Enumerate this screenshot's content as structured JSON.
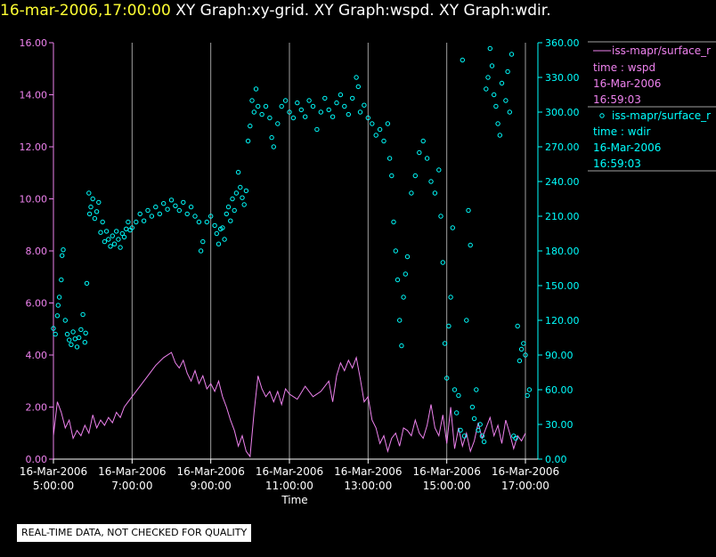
{
  "header": {
    "timestamp": "16-mar-2006,17:00:00",
    "graphs": "XY Graph:xy-grid.  XY Graph:wspd.  XY Graph:wdir."
  },
  "disclaimer": "REAL-TIME DATA, NOT CHECKED FOR QUALITY",
  "colors": {
    "wspd": "#ee82ee",
    "wdir": "#00ffff",
    "left_axis": "#ee82ee",
    "right_axis": "#00ffff",
    "grid": "#a0a0a0",
    "axis": "#ffffff"
  },
  "chart_data": {
    "type": "line",
    "title": "XY Graph:wspd / wdir",
    "xlabel": "Time",
    "ylabel_left": "",
    "ylabel_right": "",
    "xlim_hours": [
      5.0,
      17.2
    ],
    "x_ticks": [
      {
        "hour": 5,
        "date": "16-Mar-2006",
        "time": "5:00:00"
      },
      {
        "hour": 7,
        "date": "16-Mar-2006",
        "time": "7:00:00"
      },
      {
        "hour": 9,
        "date": "16-Mar-2006",
        "time": "9:00:00"
      },
      {
        "hour": 11,
        "date": "16-Mar-2006",
        "time": "11:00:00"
      },
      {
        "hour": 13,
        "date": "16-Mar-2006",
        "time": "13:00:00"
      },
      {
        "hour": 15,
        "date": "16-Mar-2006",
        "time": "15:00:00"
      },
      {
        "hour": 17,
        "date": "16-Mar-2006",
        "time": "17:00:00"
      }
    ],
    "y_left": {
      "range": [
        0,
        16
      ],
      "ticks": [
        "0.00",
        "2.00",
        "4.00",
        "6.00",
        "8.00",
        "10.00",
        "12.00",
        "14.00",
        "16.00"
      ]
    },
    "y_right": {
      "range": [
        0,
        360
      ],
      "ticks": [
        "0.00",
        "30.00",
        "60.00",
        "90.00",
        "120.00",
        "150.00",
        "180.00",
        "210.00",
        "240.00",
        "270.00",
        "300.00",
        "330.00",
        "360.00"
      ]
    },
    "grid_vertical_hours": [
      7,
      9,
      11,
      13,
      15,
      17
    ],
    "series": [
      {
        "name": "iss-mapr/surface_r",
        "legend_lines": [
          "time : wspd",
          "16-Mar-2006",
          "16:59:03"
        ],
        "axis": "left",
        "style": "line",
        "points": [
          [
            5.0,
            0.9
          ],
          [
            5.1,
            2.2
          ],
          [
            5.2,
            1.8
          ],
          [
            5.3,
            1.2
          ],
          [
            5.4,
            1.5
          ],
          [
            5.5,
            0.8
          ],
          [
            5.6,
            1.1
          ],
          [
            5.7,
            0.9
          ],
          [
            5.8,
            1.3
          ],
          [
            5.9,
            1.0
          ],
          [
            6.0,
            1.7
          ],
          [
            6.1,
            1.2
          ],
          [
            6.2,
            1.5
          ],
          [
            6.3,
            1.3
          ],
          [
            6.4,
            1.6
          ],
          [
            6.5,
            1.4
          ],
          [
            6.6,
            1.8
          ],
          [
            6.7,
            1.6
          ],
          [
            6.8,
            2.0
          ],
          [
            6.9,
            2.2
          ],
          [
            7.0,
            2.4
          ],
          [
            7.2,
            2.8
          ],
          [
            7.4,
            3.2
          ],
          [
            7.6,
            3.6
          ],
          [
            7.8,
            3.9
          ],
          [
            8.0,
            4.1
          ],
          [
            8.1,
            3.7
          ],
          [
            8.2,
            3.5
          ],
          [
            8.3,
            3.8
          ],
          [
            8.4,
            3.3
          ],
          [
            8.5,
            3.0
          ],
          [
            8.6,
            3.4
          ],
          [
            8.7,
            2.9
          ],
          [
            8.8,
            3.2
          ],
          [
            8.9,
            2.7
          ],
          [
            9.0,
            2.9
          ],
          [
            9.1,
            2.6
          ],
          [
            9.2,
            3.0
          ],
          [
            9.3,
            2.4
          ],
          [
            9.4,
            2.0
          ],
          [
            9.5,
            1.5
          ],
          [
            9.6,
            1.1
          ],
          [
            9.7,
            0.5
          ],
          [
            9.8,
            0.9
          ],
          [
            9.9,
            0.3
          ],
          [
            10.0,
            0.1
          ],
          [
            10.1,
            1.8
          ],
          [
            10.2,
            3.2
          ],
          [
            10.3,
            2.7
          ],
          [
            10.4,
            2.4
          ],
          [
            10.5,
            2.6
          ],
          [
            10.6,
            2.2
          ],
          [
            10.7,
            2.6
          ],
          [
            10.8,
            2.1
          ],
          [
            10.9,
            2.7
          ],
          [
            11.0,
            2.5
          ],
          [
            11.2,
            2.3
          ],
          [
            11.4,
            2.8
          ],
          [
            11.6,
            2.4
          ],
          [
            11.8,
            2.6
          ],
          [
            12.0,
            3.0
          ],
          [
            12.1,
            2.2
          ],
          [
            12.2,
            3.2
          ],
          [
            12.3,
            3.7
          ],
          [
            12.4,
            3.4
          ],
          [
            12.5,
            3.8
          ],
          [
            12.6,
            3.5
          ],
          [
            12.7,
            3.9
          ],
          [
            12.8,
            3.1
          ],
          [
            12.9,
            2.2
          ],
          [
            13.0,
            2.4
          ],
          [
            13.1,
            1.5
          ],
          [
            13.2,
            1.2
          ],
          [
            13.3,
            0.6
          ],
          [
            13.4,
            0.9
          ],
          [
            13.5,
            0.3
          ],
          [
            13.6,
            0.8
          ],
          [
            13.7,
            1.0
          ],
          [
            13.8,
            0.5
          ],
          [
            13.9,
            1.2
          ],
          [
            14.0,
            1.1
          ],
          [
            14.1,
            0.9
          ],
          [
            14.2,
            1.5
          ],
          [
            14.3,
            1.0
          ],
          [
            14.4,
            0.8
          ],
          [
            14.5,
            1.3
          ],
          [
            14.6,
            2.1
          ],
          [
            14.7,
            1.2
          ],
          [
            14.8,
            0.9
          ],
          [
            14.9,
            1.7
          ],
          [
            15.0,
            0.6
          ],
          [
            15.1,
            2.0
          ],
          [
            15.2,
            0.4
          ],
          [
            15.3,
            1.2
          ],
          [
            15.4,
            0.5
          ],
          [
            15.5,
            1.0
          ],
          [
            15.6,
            0.3
          ],
          [
            15.7,
            0.7
          ],
          [
            15.8,
            1.4
          ],
          [
            15.9,
            0.8
          ],
          [
            16.0,
            1.2
          ],
          [
            16.1,
            1.6
          ],
          [
            16.2,
            0.9
          ],
          [
            16.3,
            1.3
          ],
          [
            16.4,
            0.6
          ],
          [
            16.5,
            1.5
          ],
          [
            16.6,
            1.0
          ],
          [
            16.7,
            0.4
          ],
          [
            16.8,
            0.9
          ],
          [
            16.9,
            0.7
          ],
          [
            17.0,
            1.0
          ]
        ]
      },
      {
        "name": "iss-mapr/surface_r",
        "legend_lines": [
          "time : wdir",
          "16-Mar-2006",
          "16:59:03"
        ],
        "axis": "right",
        "style": "scatter",
        "points": [
          [
            5.0,
            113
          ],
          [
            5.05,
            108
          ],
          [
            5.1,
            124
          ],
          [
            5.12,
            133
          ],
          [
            5.15,
            140
          ],
          [
            5.2,
            155
          ],
          [
            5.22,
            176
          ],
          [
            5.25,
            181
          ],
          [
            5.3,
            120
          ],
          [
            5.35,
            108
          ],
          [
            5.4,
            103
          ],
          [
            5.45,
            99
          ],
          [
            5.5,
            110
          ],
          [
            5.55,
            104
          ],
          [
            5.6,
            97
          ],
          [
            5.65,
            105
          ],
          [
            5.7,
            112
          ],
          [
            5.75,
            125
          ],
          [
            5.8,
            101
          ],
          [
            5.82,
            109
          ],
          [
            5.85,
            152
          ],
          [
            5.9,
            230
          ],
          [
            5.92,
            212
          ],
          [
            5.95,
            218
          ],
          [
            6.0,
            225
          ],
          [
            6.05,
            208
          ],
          [
            6.1,
            214
          ],
          [
            6.15,
            222
          ],
          [
            6.2,
            196
          ],
          [
            6.25,
            205
          ],
          [
            6.3,
            188
          ],
          [
            6.35,
            197
          ],
          [
            6.4,
            190
          ],
          [
            6.45,
            184
          ],
          [
            6.5,
            193
          ],
          [
            6.55,
            186
          ],
          [
            6.6,
            197
          ],
          [
            6.65,
            190
          ],
          [
            6.7,
            183
          ],
          [
            6.75,
            195
          ],
          [
            6.8,
            192
          ],
          [
            6.85,
            199
          ],
          [
            6.9,
            205
          ],
          [
            6.95,
            198
          ],
          [
            7.0,
            200
          ],
          [
            7.1,
            205
          ],
          [
            7.2,
            212
          ],
          [
            7.3,
            206
          ],
          [
            7.4,
            215
          ],
          [
            7.5,
            210
          ],
          [
            7.6,
            218
          ],
          [
            7.7,
            212
          ],
          [
            7.8,
            221
          ],
          [
            7.9,
            216
          ],
          [
            8.0,
            224
          ],
          [
            8.1,
            219
          ],
          [
            8.2,
            215
          ],
          [
            8.3,
            222
          ],
          [
            8.4,
            212
          ],
          [
            8.5,
            218
          ],
          [
            8.6,
            210
          ],
          [
            8.7,
            205
          ],
          [
            8.75,
            180
          ],
          [
            8.8,
            188
          ],
          [
            8.9,
            205
          ],
          [
            9.0,
            210
          ],
          [
            9.1,
            202
          ],
          [
            9.15,
            195
          ],
          [
            9.2,
            186
          ],
          [
            9.25,
            199
          ],
          [
            9.3,
            200
          ],
          [
            9.35,
            190
          ],
          [
            9.4,
            212
          ],
          [
            9.45,
            218
          ],
          [
            9.5,
            206
          ],
          [
            9.55,
            225
          ],
          [
            9.6,
            215
          ],
          [
            9.65,
            230
          ],
          [
            9.7,
            248
          ],
          [
            9.75,
            235
          ],
          [
            9.8,
            226
          ],
          [
            9.85,
            220
          ],
          [
            9.9,
            232
          ],
          [
            9.95,
            275
          ],
          [
            10.0,
            288
          ],
          [
            10.05,
            310
          ],
          [
            10.1,
            300
          ],
          [
            10.15,
            320
          ],
          [
            10.2,
            305
          ],
          [
            10.3,
            298
          ],
          [
            10.4,
            305
          ],
          [
            10.5,
            295
          ],
          [
            10.55,
            278
          ],
          [
            10.6,
            270
          ],
          [
            10.7,
            290
          ],
          [
            10.8,
            305
          ],
          [
            10.9,
            310
          ],
          [
            11.0,
            300
          ],
          [
            11.1,
            295
          ],
          [
            11.2,
            308
          ],
          [
            11.3,
            302
          ],
          [
            11.4,
            296
          ],
          [
            11.5,
            310
          ],
          [
            11.6,
            305
          ],
          [
            11.7,
            285
          ],
          [
            11.8,
            300
          ],
          [
            11.9,
            312
          ],
          [
            12.0,
            302
          ],
          [
            12.1,
            296
          ],
          [
            12.2,
            308
          ],
          [
            12.3,
            315
          ],
          [
            12.4,
            305
          ],
          [
            12.5,
            298
          ],
          [
            12.6,
            312
          ],
          [
            12.7,
            330
          ],
          [
            12.75,
            322
          ],
          [
            12.8,
            300
          ],
          [
            12.9,
            306
          ],
          [
            13.0,
            295
          ],
          [
            13.1,
            290
          ],
          [
            13.2,
            280
          ],
          [
            13.3,
            285
          ],
          [
            13.4,
            275
          ],
          [
            13.5,
            290
          ],
          [
            13.55,
            260
          ],
          [
            13.6,
            245
          ],
          [
            13.65,
            205
          ],
          [
            13.7,
            180
          ],
          [
            13.75,
            155
          ],
          [
            13.8,
            120
          ],
          [
            13.85,
            98
          ],
          [
            13.9,
            140
          ],
          [
            13.95,
            160
          ],
          [
            14.0,
            175
          ],
          [
            14.1,
            230
          ],
          [
            14.2,
            245
          ],
          [
            14.3,
            265
          ],
          [
            14.4,
            275
          ],
          [
            14.5,
            260
          ],
          [
            14.6,
            240
          ],
          [
            14.7,
            230
          ],
          [
            14.8,
            250
          ],
          [
            14.85,
            210
          ],
          [
            14.9,
            170
          ],
          [
            14.95,
            100
          ],
          [
            15.0,
            70
          ],
          [
            15.05,
            115
          ],
          [
            15.1,
            140
          ],
          [
            15.15,
            200
          ],
          [
            15.2,
            60
          ],
          [
            15.25,
            40
          ],
          [
            15.3,
            55
          ],
          [
            15.35,
            25
          ],
          [
            15.4,
            345
          ],
          [
            15.45,
            20
          ],
          [
            15.5,
            120
          ],
          [
            15.55,
            215
          ],
          [
            15.6,
            185
          ],
          [
            15.65,
            45
          ],
          [
            15.7,
            35
          ],
          [
            15.75,
            60
          ],
          [
            15.8,
            25
          ],
          [
            15.85,
            30
          ],
          [
            15.9,
            20
          ],
          [
            15.95,
            15
          ],
          [
            16.0,
            320
          ],
          [
            16.05,
            330
          ],
          [
            16.1,
            355
          ],
          [
            16.15,
            340
          ],
          [
            16.2,
            315
          ],
          [
            16.25,
            305
          ],
          [
            16.3,
            290
          ],
          [
            16.35,
            280
          ],
          [
            16.4,
            325
          ],
          [
            16.5,
            310
          ],
          [
            16.55,
            335
          ],
          [
            16.6,
            300
          ],
          [
            16.65,
            350
          ],
          [
            16.7,
            20
          ],
          [
            16.75,
            18
          ],
          [
            16.8,
            115
          ],
          [
            16.85,
            85
          ],
          [
            16.9,
            95
          ],
          [
            16.95,
            100
          ],
          [
            17.0,
            90
          ],
          [
            17.05,
            55
          ],
          [
            17.1,
            60
          ]
        ]
      }
    ]
  }
}
